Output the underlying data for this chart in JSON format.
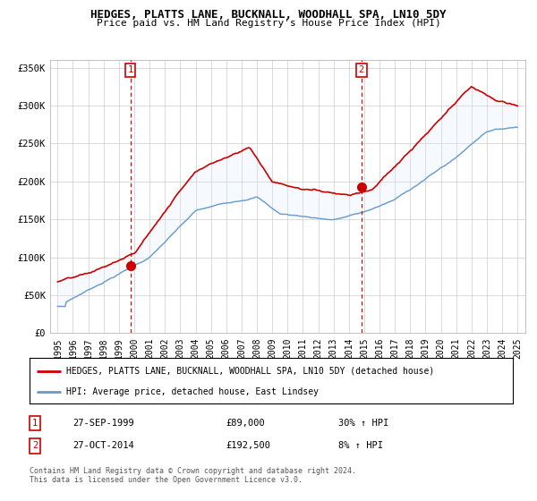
{
  "title": "HEDGES, PLATTS LANE, BUCKNALL, WOODHALL SPA, LN10 5DY",
  "subtitle": "Price paid vs. HM Land Registry's House Price Index (HPI)",
  "legend_line1": "HEDGES, PLATTS LANE, BUCKNALL, WOODHALL SPA, LN10 5DY (detached house)",
  "legend_line2": "HPI: Average price, detached house, East Lindsey",
  "table_row1": [
    "1",
    "27-SEP-1999",
    "£89,000",
    "30% ↑ HPI"
  ],
  "table_row2": [
    "2",
    "27-OCT-2014",
    "£192,500",
    "8% ↑ HPI"
  ],
  "footnote": "Contains HM Land Registry data © Crown copyright and database right 2024.\nThis data is licensed under the Open Government Licence v3.0.",
  "ylim": [
    0,
    360000
  ],
  "yticks": [
    0,
    50000,
    100000,
    150000,
    200000,
    250000,
    300000,
    350000
  ],
  "ytick_labels": [
    "£0",
    "£50K",
    "£100K",
    "£150K",
    "£200K",
    "£250K",
    "£300K",
    "£350K"
  ],
  "marker1_x": 1999.75,
  "marker1_y": 89000,
  "marker2_x": 2014.82,
  "marker2_y": 192500,
  "vline1_x": 1999.75,
  "vline2_x": 2014.82,
  "red_color": "#cc0000",
  "blue_color": "#6699cc",
  "fill_color": "#ddeeff",
  "background_color": "#ffffff",
  "grid_color": "#cccccc",
  "xlim_left": 1994.5,
  "xlim_right": 2025.5
}
